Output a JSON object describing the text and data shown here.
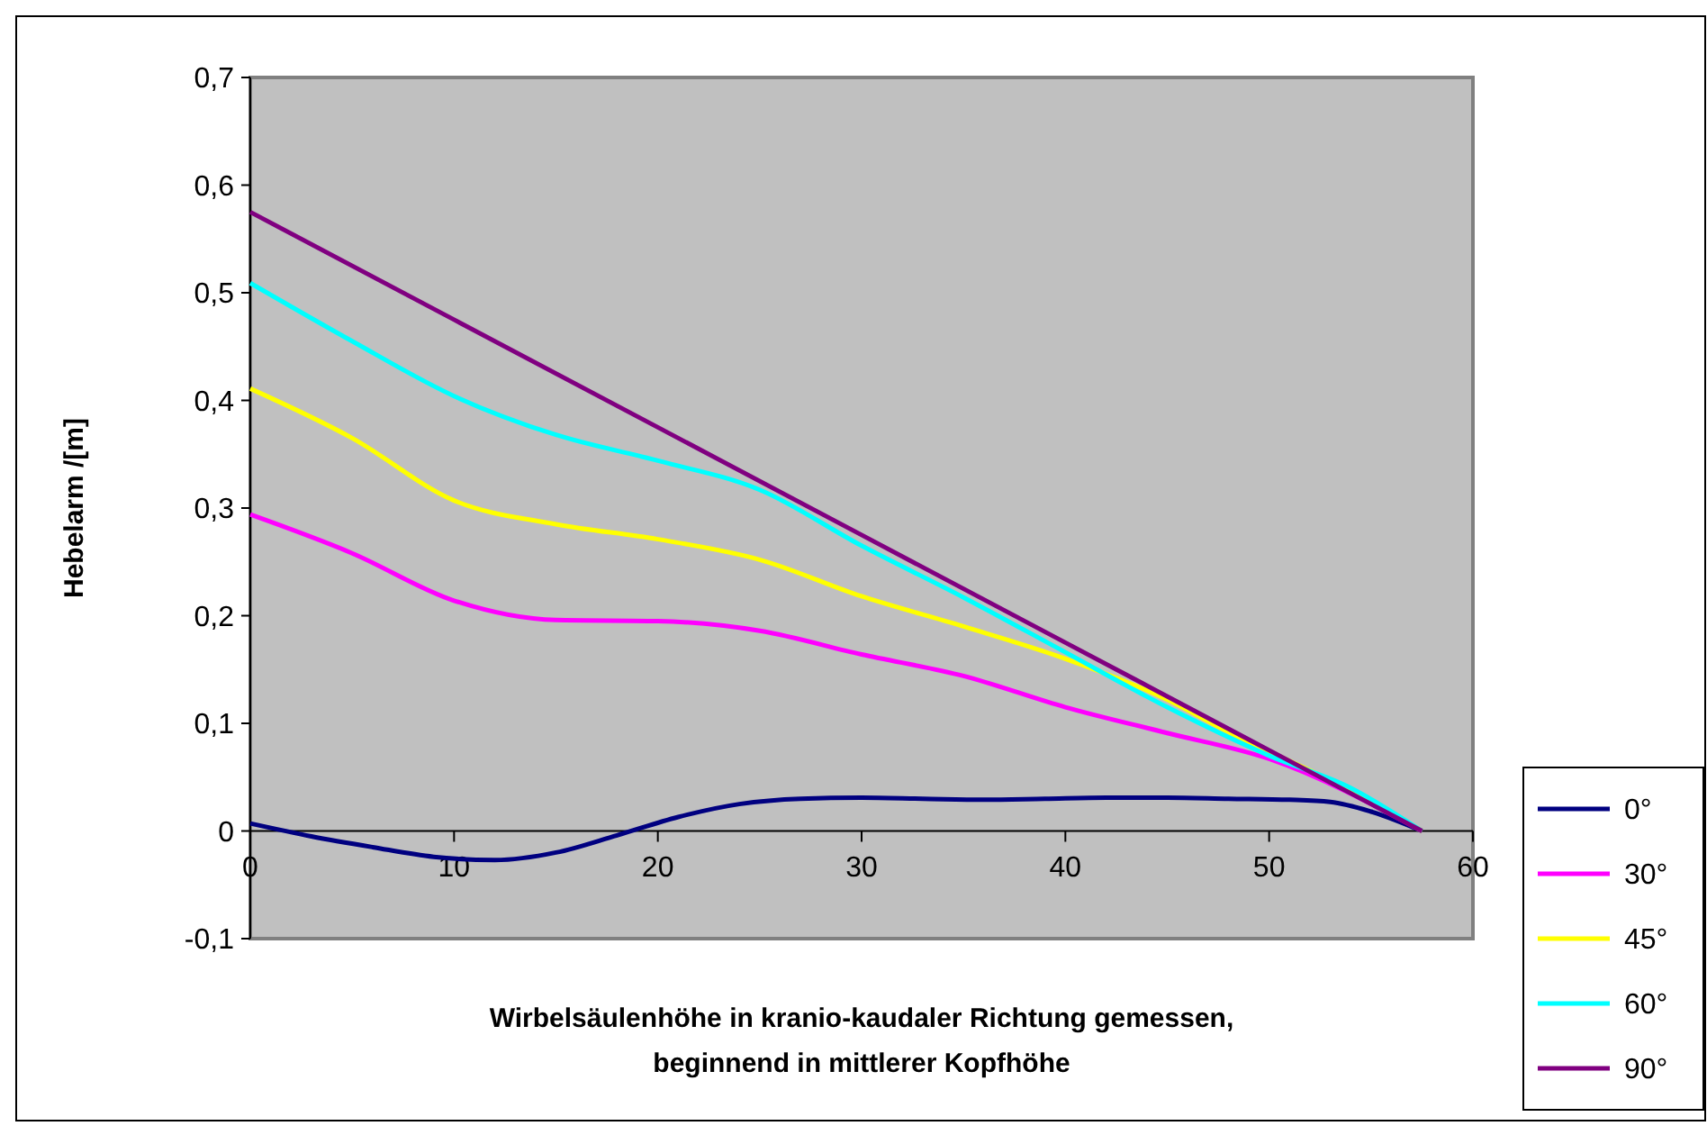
{
  "chart_data": {
    "type": "line",
    "xlabel": "Wirbelsäulenhöhe in kranio-kaudaler Richtung gemessen,\nbeginnend in mittlerer Kopfhöhe",
    "ylabel": "Hebelarm /[m]",
    "xlim": [
      0,
      60
    ],
    "xticks": [
      0,
      10,
      20,
      30,
      40,
      50,
      60
    ],
    "ylim": [
      -0.1,
      0.7
    ],
    "yticks": [
      {
        "value": -0.1,
        "label": "-0,1"
      },
      {
        "value": 0,
        "label": "0"
      },
      {
        "value": 0.1,
        "label": "0,1"
      },
      {
        "value": 0.2,
        "label": "0,2"
      },
      {
        "value": 0.3,
        "label": "0,3"
      },
      {
        "value": 0.4,
        "label": "0,4"
      },
      {
        "value": 0.5,
        "label": "0,5"
      },
      {
        "value": 0.6,
        "label": "0,6"
      },
      {
        "value": 0.7,
        "label": "0,7"
      }
    ],
    "grid": false,
    "legend": "right",
    "marker": "none",
    "line_style": "solid",
    "series": [
      {
        "name": "0°",
        "color": "#000080",
        "x": [
          0,
          3,
          6,
          9,
          12,
          15,
          18,
          21,
          24,
          27,
          30,
          33,
          36,
          39,
          42,
          45,
          48,
          51,
          53,
          55,
          57.5
        ],
        "values": [
          0.007,
          -0.005,
          -0.015,
          -0.024,
          -0.027,
          -0.02,
          -0.004,
          0.013,
          0.025,
          0.03,
          0.031,
          0.03,
          0.029,
          0.03,
          0.031,
          0.031,
          0.03,
          0.029,
          0.027,
          0.018,
          0
        ]
      },
      {
        "name": "30°",
        "color": "#ff00ff",
        "x": [
          0,
          5,
          10,
          15,
          20,
          25,
          30,
          35,
          40,
          45,
          50,
          57.5
        ],
        "values": [
          0.294,
          0.258,
          0.214,
          0.196,
          0.195,
          0.186,
          0.164,
          0.144,
          0.115,
          0.091,
          0.067,
          0
        ]
      },
      {
        "name": "45°",
        "color": "#ffff00",
        "x": [
          0,
          5,
          10,
          15,
          20,
          25,
          30,
          35,
          40,
          45,
          48,
          51,
          54,
          57.5
        ],
        "values": [
          0.411,
          0.365,
          0.307,
          0.285,
          0.271,
          0.252,
          0.218,
          0.19,
          0.16,
          0.122,
          0.092,
          0.065,
          0.038,
          0
        ]
      },
      {
        "name": "60°",
        "color": "#00ffff",
        "x": [
          0,
          5,
          10,
          15,
          20,
          25,
          30,
          35,
          40,
          45,
          50,
          54,
          57.5
        ],
        "values": [
          0.509,
          0.455,
          0.404,
          0.368,
          0.344,
          0.317,
          0.265,
          0.217,
          0.166,
          0.115,
          0.07,
          0.04,
          0
        ]
      },
      {
        "name": "90°",
        "color": "#800080",
        "x": [
          0,
          10,
          20,
          30,
          40,
          50,
          57.5
        ],
        "values": [
          0.575,
          0.475,
          0.375,
          0.275,
          0.175,
          0.075,
          0
        ]
      }
    ]
  }
}
